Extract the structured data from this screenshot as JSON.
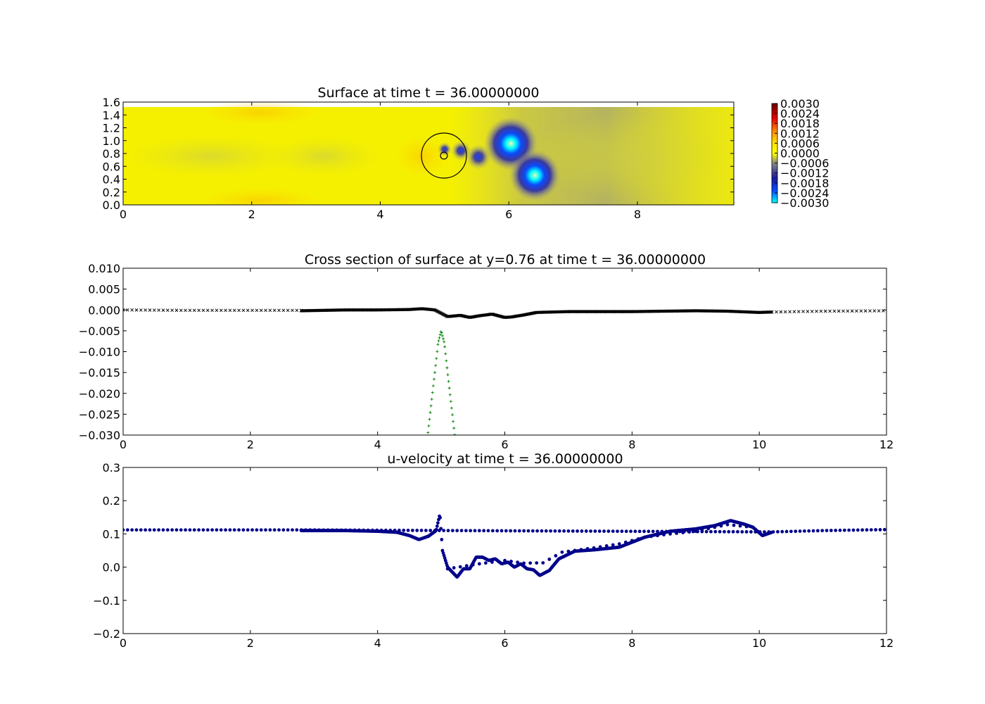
{
  "chart_data": [
    {
      "type": "heatmap",
      "title": "Surface at time t =     36.00000000",
      "xlim": [
        0,
        9.5
      ],
      "ylim": [
        0,
        1.6
      ],
      "x_ticks": [
        "0",
        "2",
        "4",
        "6",
        "8"
      ],
      "y_ticks": [
        "0.0",
        "0.2",
        "0.4",
        "0.6",
        "0.8",
        "1.0",
        "1.2",
        "1.4",
        "1.6"
      ],
      "colorbar": {
        "range": [
          -0.003,
          0.003
        ],
        "ticks": [
          "0.0030",
          "0.0024",
          "0.0018",
          "0.0012",
          "0.0006",
          "0.0000",
          "−0.0006",
          "−0.0012",
          "−0.0018",
          "−0.0024",
          "−0.0030"
        ]
      },
      "features": [
        {
          "kind": "depression",
          "x": 6.05,
          "y": 0.95,
          "value": -0.0028
        },
        {
          "kind": "depression",
          "x": 6.42,
          "y": 0.46,
          "value": -0.0028
        },
        {
          "kind": "depression",
          "x": 5.52,
          "y": 0.74,
          "value": -0.0016
        },
        {
          "kind": "depression",
          "x": 5.25,
          "y": 0.83,
          "value": -0.0014
        },
        {
          "kind": "depression",
          "x": 5.0,
          "y": 0.8,
          "value": -0.0013
        },
        {
          "kind": "circle",
          "x": 5.0,
          "y": 0.76,
          "r": 0.35
        },
        {
          "kind": "circle",
          "x": 5.0,
          "y": 0.76,
          "r": 0.05
        }
      ]
    },
    {
      "type": "scatter",
      "title": "Cross section of surface at y=0.76 at time t =     36.00000000",
      "xlim": [
        0,
        12
      ],
      "ylim": [
        -0.03,
        0.01
      ],
      "x_ticks": [
        "0",
        "2",
        "4",
        "6",
        "8",
        "10",
        "12"
      ],
      "y_ticks": [
        "0.010",
        "0.005",
        "0.000",
        "−0.005",
        "−0.010",
        "−0.015",
        "−0.020",
        "−0.025",
        "−0.030"
      ],
      "series": [
        {
          "marker": "x-coarse",
          "color": "#000000",
          "x": [
            0,
            2.8
          ],
          "x2": [
            10.2,
            12
          ],
          "step": 0.07,
          "points": [
            [
              0,
              0.0
            ],
            [
              1.0,
              -0.0001
            ],
            [
              2.0,
              -0.0001
            ],
            [
              2.8,
              -0.0001
            ],
            [
              10.2,
              -0.0005
            ],
            [
              11.0,
              -0.0003
            ],
            [
              12,
              -0.0002
            ]
          ]
        },
        {
          "marker": "x-fine",
          "color": "#000000",
          "step": 0.012,
          "points": [
            [
              2.8,
              -0.0002
            ],
            [
              3.5,
              0.0
            ],
            [
              4.0,
              0.0
            ],
            [
              4.5,
              0.0001
            ],
            [
              4.7,
              0.0003
            ],
            [
              4.9,
              0.0
            ],
            [
              5.0,
              -0.0008
            ],
            [
              5.1,
              -0.0016
            ],
            [
              5.3,
              -0.0013
            ],
            [
              5.45,
              -0.0018
            ],
            [
              5.6,
              -0.0014
            ],
            [
              5.8,
              -0.001
            ],
            [
              6.0,
              -0.0018
            ],
            [
              6.1,
              -0.0017
            ],
            [
              6.3,
              -0.0012
            ],
            [
              6.5,
              -0.0006
            ],
            [
              7.0,
              -0.0004
            ],
            [
              8.0,
              -0.0004
            ],
            [
              9.0,
              -0.0002
            ],
            [
              9.5,
              -0.0003
            ],
            [
              10.0,
              -0.0006
            ],
            [
              10.2,
              -0.0005
            ]
          ]
        },
        {
          "marker": "+",
          "color": "#008000",
          "step": 0.012,
          "points": [
            [
              4.78,
              -0.031
            ],
            [
              4.9,
              -0.015
            ],
            [
              4.95,
              -0.008
            ],
            [
              5.0,
              -0.005
            ],
            [
              5.05,
              -0.008
            ],
            [
              5.1,
              -0.015
            ],
            [
              5.22,
              -0.031
            ]
          ]
        }
      ]
    },
    {
      "type": "scatter",
      "title": "u-velocity at time t =     36.00000000",
      "xlim": [
        0,
        12
      ],
      "ylim": [
        -0.2,
        0.3
      ],
      "x_ticks": [
        "0",
        "2",
        "4",
        "6",
        "8",
        "10",
        "12"
      ],
      "y_ticks": [
        "0.3",
        "0.2",
        "0.1",
        "0.0",
        "−0.1",
        "−0.2"
      ],
      "series": [
        {
          "marker": "dot",
          "color": "#00008b",
          "step": 0.012,
          "points": [
            [
              2.8,
              0.11
            ],
            [
              3.5,
              0.11
            ],
            [
              4.0,
              0.108
            ],
            [
              4.3,
              0.105
            ],
            [
              4.5,
              0.095
            ],
            [
              4.65,
              0.083
            ],
            [
              4.8,
              0.093
            ],
            [
              4.92,
              0.11
            ],
            [
              4.98,
              0.16
            ],
            [
              5.02,
              0.05
            ],
            [
              5.1,
              0.0
            ],
            [
              5.25,
              -0.03
            ],
            [
              5.35,
              -0.005
            ],
            [
              5.45,
              -0.005
            ],
            [
              5.55,
              0.03
            ],
            [
              5.65,
              0.03
            ],
            [
              5.75,
              0.02
            ],
            [
              5.85,
              0.025
            ],
            [
              5.95,
              0.01
            ],
            [
              6.05,
              0.015
            ],
            [
              6.15,
              0.0
            ],
            [
              6.25,
              0.01
            ],
            [
              6.35,
              -0.005
            ],
            [
              6.45,
              -0.008
            ],
            [
              6.55,
              -0.025
            ],
            [
              6.7,
              -0.01
            ],
            [
              6.85,
              0.025
            ],
            [
              7.1,
              0.048
            ],
            [
              7.4,
              0.052
            ],
            [
              7.8,
              0.06
            ],
            [
              8.2,
              0.09
            ],
            [
              8.6,
              0.108
            ],
            [
              9.0,
              0.115
            ],
            [
              9.3,
              0.125
            ],
            [
              9.55,
              0.14
            ],
            [
              9.75,
              0.13
            ],
            [
              9.9,
              0.12
            ],
            [
              10.05,
              0.095
            ],
            [
              10.2,
              0.105
            ]
          ]
        },
        {
          "marker": "dot-coarse",
          "color": "#00008b",
          "step": 0.07,
          "points": [
            [
              0,
              0.112
            ],
            [
              2.8,
              0.112
            ],
            [
              10.2,
              0.106
            ],
            [
              11.0,
              0.11
            ],
            [
              12,
              0.113
            ]
          ]
        },
        {
          "marker": "dot-coarse",
          "color": "#00008b",
          "step": 0.1,
          "points": [
            [
              5.1,
              -0.005
            ],
            [
              5.6,
              0.01
            ],
            [
              6.0,
              0.02
            ],
            [
              6.3,
              0.012
            ],
            [
              6.6,
              0.013
            ],
            [
              6.9,
              0.045
            ],
            [
              7.4,
              0.058
            ],
            [
              7.8,
              0.07
            ],
            [
              8.2,
              0.09
            ],
            [
              8.6,
              0.1
            ],
            [
              9.0,
              0.108
            ],
            [
              9.5,
              0.128
            ],
            [
              9.9,
              0.12
            ]
          ]
        }
      ]
    }
  ]
}
